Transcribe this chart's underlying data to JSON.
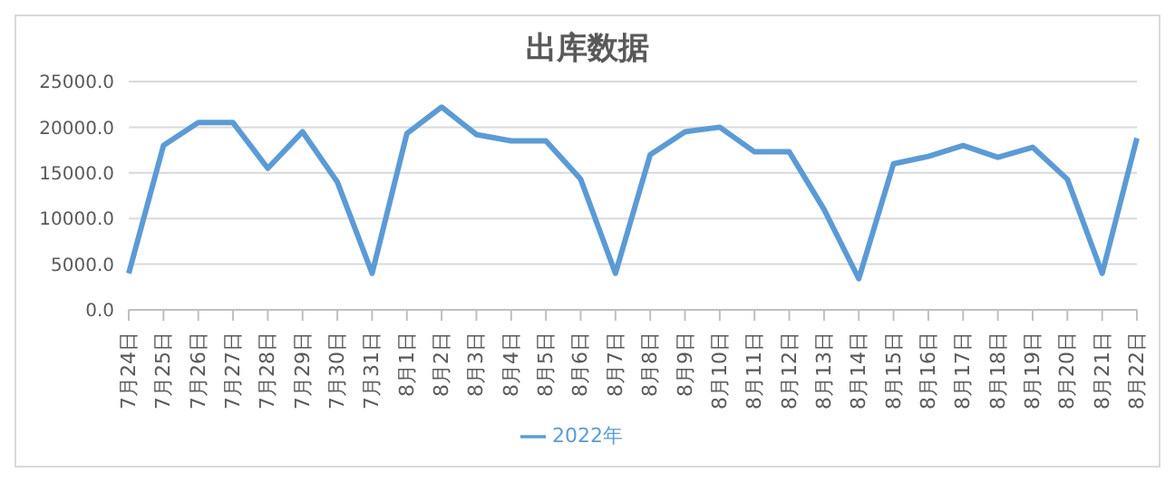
{
  "chart_data": {
    "type": "line",
    "title": "出库数据",
    "categories": [
      "7月24日",
      "7月25日",
      "7月26日",
      "7月27日",
      "7月28日",
      "7月29日",
      "7月30日",
      "7月31日",
      "8月1日",
      "8月2日",
      "8月3日",
      "8月4日",
      "8月5日",
      "8月6日",
      "8月7日",
      "8月8日",
      "8月9日",
      "8月10日",
      "8月11日",
      "8月12日",
      "8月13日",
      "8月14日",
      "8月15日",
      "8月16日",
      "8月17日",
      "8月18日",
      "8月19日",
      "8月20日",
      "8月21日",
      "8月22日"
    ],
    "series": [
      {
        "name": "2022年",
        "color": "#5b9bd5",
        "values": [
          4000,
          18000,
          20500,
          20500,
          15500,
          19500,
          14000,
          4000,
          19300,
          22200,
          19200,
          18500,
          18500,
          14300,
          4000,
          17000,
          19500,
          20000,
          17300,
          17300,
          11000,
          3400,
          16000,
          16800,
          18000,
          16700,
          17800,
          14300,
          4000,
          18800
        ]
      }
    ],
    "ylim": [
      0,
      25000
    ],
    "yticks": [
      {
        "value": 0,
        "label": "0.0"
      },
      {
        "value": 5000,
        "label": "5000.0"
      },
      {
        "value": 10000,
        "label": "10000.0"
      },
      {
        "value": 15000,
        "label": "15000.0"
      },
      {
        "value": 20000,
        "label": "20000.0"
      },
      {
        "value": 25000,
        "label": "25000.0"
      }
    ],
    "grid": "y",
    "legend": "bottom",
    "marker": "none",
    "line_style": "solid"
  }
}
